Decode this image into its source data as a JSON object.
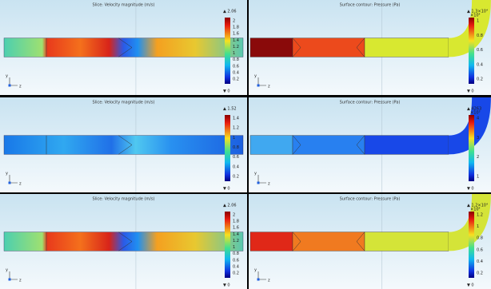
{
  "panels": [
    {
      "title": "Slice: Velocity magnitude (m/s)",
      "max_label": "▲ 2.06",
      "ticks": [
        "2",
        "1.8",
        "1.6",
        "1.4",
        "1.2",
        "1",
        "0.8",
        "0.6",
        "0.4",
        "0.2"
      ],
      "min_label": "▼ 0",
      "axis_y": "y",
      "axis_z": "z"
    },
    {
      "title": "Surface contour: Pressure (Pa)",
      "max_label": "▲ 1.3×10⁴",
      "exponent": "×10⁴",
      "ticks": [
        "1",
        "0.8",
        "0.6",
        "0.4",
        "0.2"
      ],
      "min_label": "▼ 0",
      "axis_y": "y",
      "axis_z": "z"
    },
    {
      "title": "Slice: Velocity magnitude (m/s)",
      "max_label": "▲ 1.52",
      "ticks": [
        "1.4",
        "1.2",
        "1",
        "0.8",
        "0.6",
        "0.4",
        "0.2"
      ],
      "min_label": "▼ 0",
      "axis_y": "y",
      "axis_z": "z"
    },
    {
      "title": "Surface contour: Pressure (Pa)",
      "max_label": "▲ 4263",
      "exponent": "×10³",
      "ticks": [
        "4",
        "3",
        "2",
        "1"
      ],
      "min_label": "▼ 0",
      "axis_y": "y",
      "axis_z": "z"
    },
    {
      "title": "Slice: Velocity magnitude (m/s)",
      "max_label": "▲ 2.06",
      "ticks": [
        "2",
        "1.8",
        "1.6",
        "1.4",
        "1.2",
        "1",
        "0.8",
        "0.6",
        "0.4",
        "0.2"
      ],
      "min_label": "▼ 0",
      "axis_y": "y",
      "axis_z": "z"
    },
    {
      "title": "Surface contour: Pressure (Pa)",
      "max_label": "▲ 1.2×10⁴",
      "exponent": "×10⁴",
      "ticks": [
        "1.2",
        "1",
        "0.8",
        "0.6",
        "0.4",
        "0.2"
      ],
      "min_label": "▼ 0",
      "axis_y": "y",
      "axis_z": "z"
    }
  ]
}
